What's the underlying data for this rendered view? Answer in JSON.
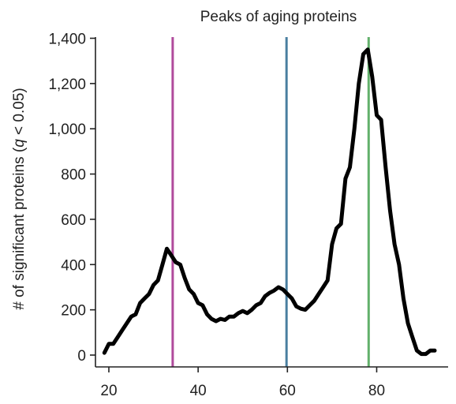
{
  "chart_data": {
    "type": "line",
    "title": "Peaks of aging proteins",
    "xlabel": "",
    "ylabel": {
      "prefix": "# of significant proteins (",
      "italic": "q",
      "suffix": " < 0.05)"
    },
    "xlim": [
      17,
      96
    ],
    "ylim": [
      0,
      1400
    ],
    "x_ticks": [
      {
        "value": 20,
        "label": "20"
      },
      {
        "value": 40,
        "label": "40"
      },
      {
        "value": 60,
        "label": "60"
      },
      {
        "value": 80,
        "label": "80"
      }
    ],
    "y_ticks": [
      {
        "value": 0,
        "label": "0"
      },
      {
        "value": 200,
        "label": "200"
      },
      {
        "value": 400,
        "label": "400"
      },
      {
        "value": 600,
        "label": "600"
      },
      {
        "value": 800,
        "label": "800"
      },
      {
        "value": 1000,
        "label": "1,000"
      },
      {
        "value": 1200,
        "label": "1,200"
      },
      {
        "value": 1400,
        "label": "1,400"
      }
    ],
    "grid": false,
    "series": [
      {
        "color": "#000000",
        "x": [
          19,
          20,
          21,
          22,
          23,
          24,
          25,
          26,
          27,
          28,
          29,
          30,
          31,
          32,
          33,
          34,
          35,
          36,
          37,
          38,
          39,
          40,
          41,
          42,
          43,
          44,
          45,
          46,
          47,
          48,
          49,
          50,
          51,
          52,
          53,
          54,
          55,
          56,
          57,
          58,
          59,
          60,
          61,
          62,
          63,
          64,
          65,
          66,
          67,
          68,
          69,
          70,
          71,
          72,
          73,
          74,
          75,
          76,
          77,
          78,
          79,
          80,
          81,
          82,
          83,
          84,
          85,
          86,
          87,
          88,
          89,
          90,
          91,
          92,
          93
        ],
        "y": [
          10,
          50,
          50,
          80,
          110,
          140,
          170,
          180,
          230,
          250,
          270,
          310,
          330,
          400,
          470,
          440,
          410,
          400,
          340,
          290,
          270,
          230,
          220,
          180,
          160,
          150,
          160,
          155,
          170,
          170,
          185,
          195,
          185,
          200,
          220,
          230,
          260,
          275,
          285,
          300,
          290,
          270,
          250,
          215,
          205,
          200,
          220,
          240,
          270,
          300,
          330,
          490,
          560,
          580,
          780,
          830,
          1000,
          1200,
          1330,
          1350,
          1230,
          1060,
          1040,
          830,
          640,
          490,
          400,
          250,
          140,
          80,
          20,
          5,
          5,
          20,
          20
        ]
      }
    ],
    "markers": [
      {
        "x": 34.3,
        "color": "#b04a9c"
      },
      {
        "x": 59.8,
        "color": "#4a7fa0"
      },
      {
        "x": 78.2,
        "color": "#62b06b"
      }
    ]
  }
}
